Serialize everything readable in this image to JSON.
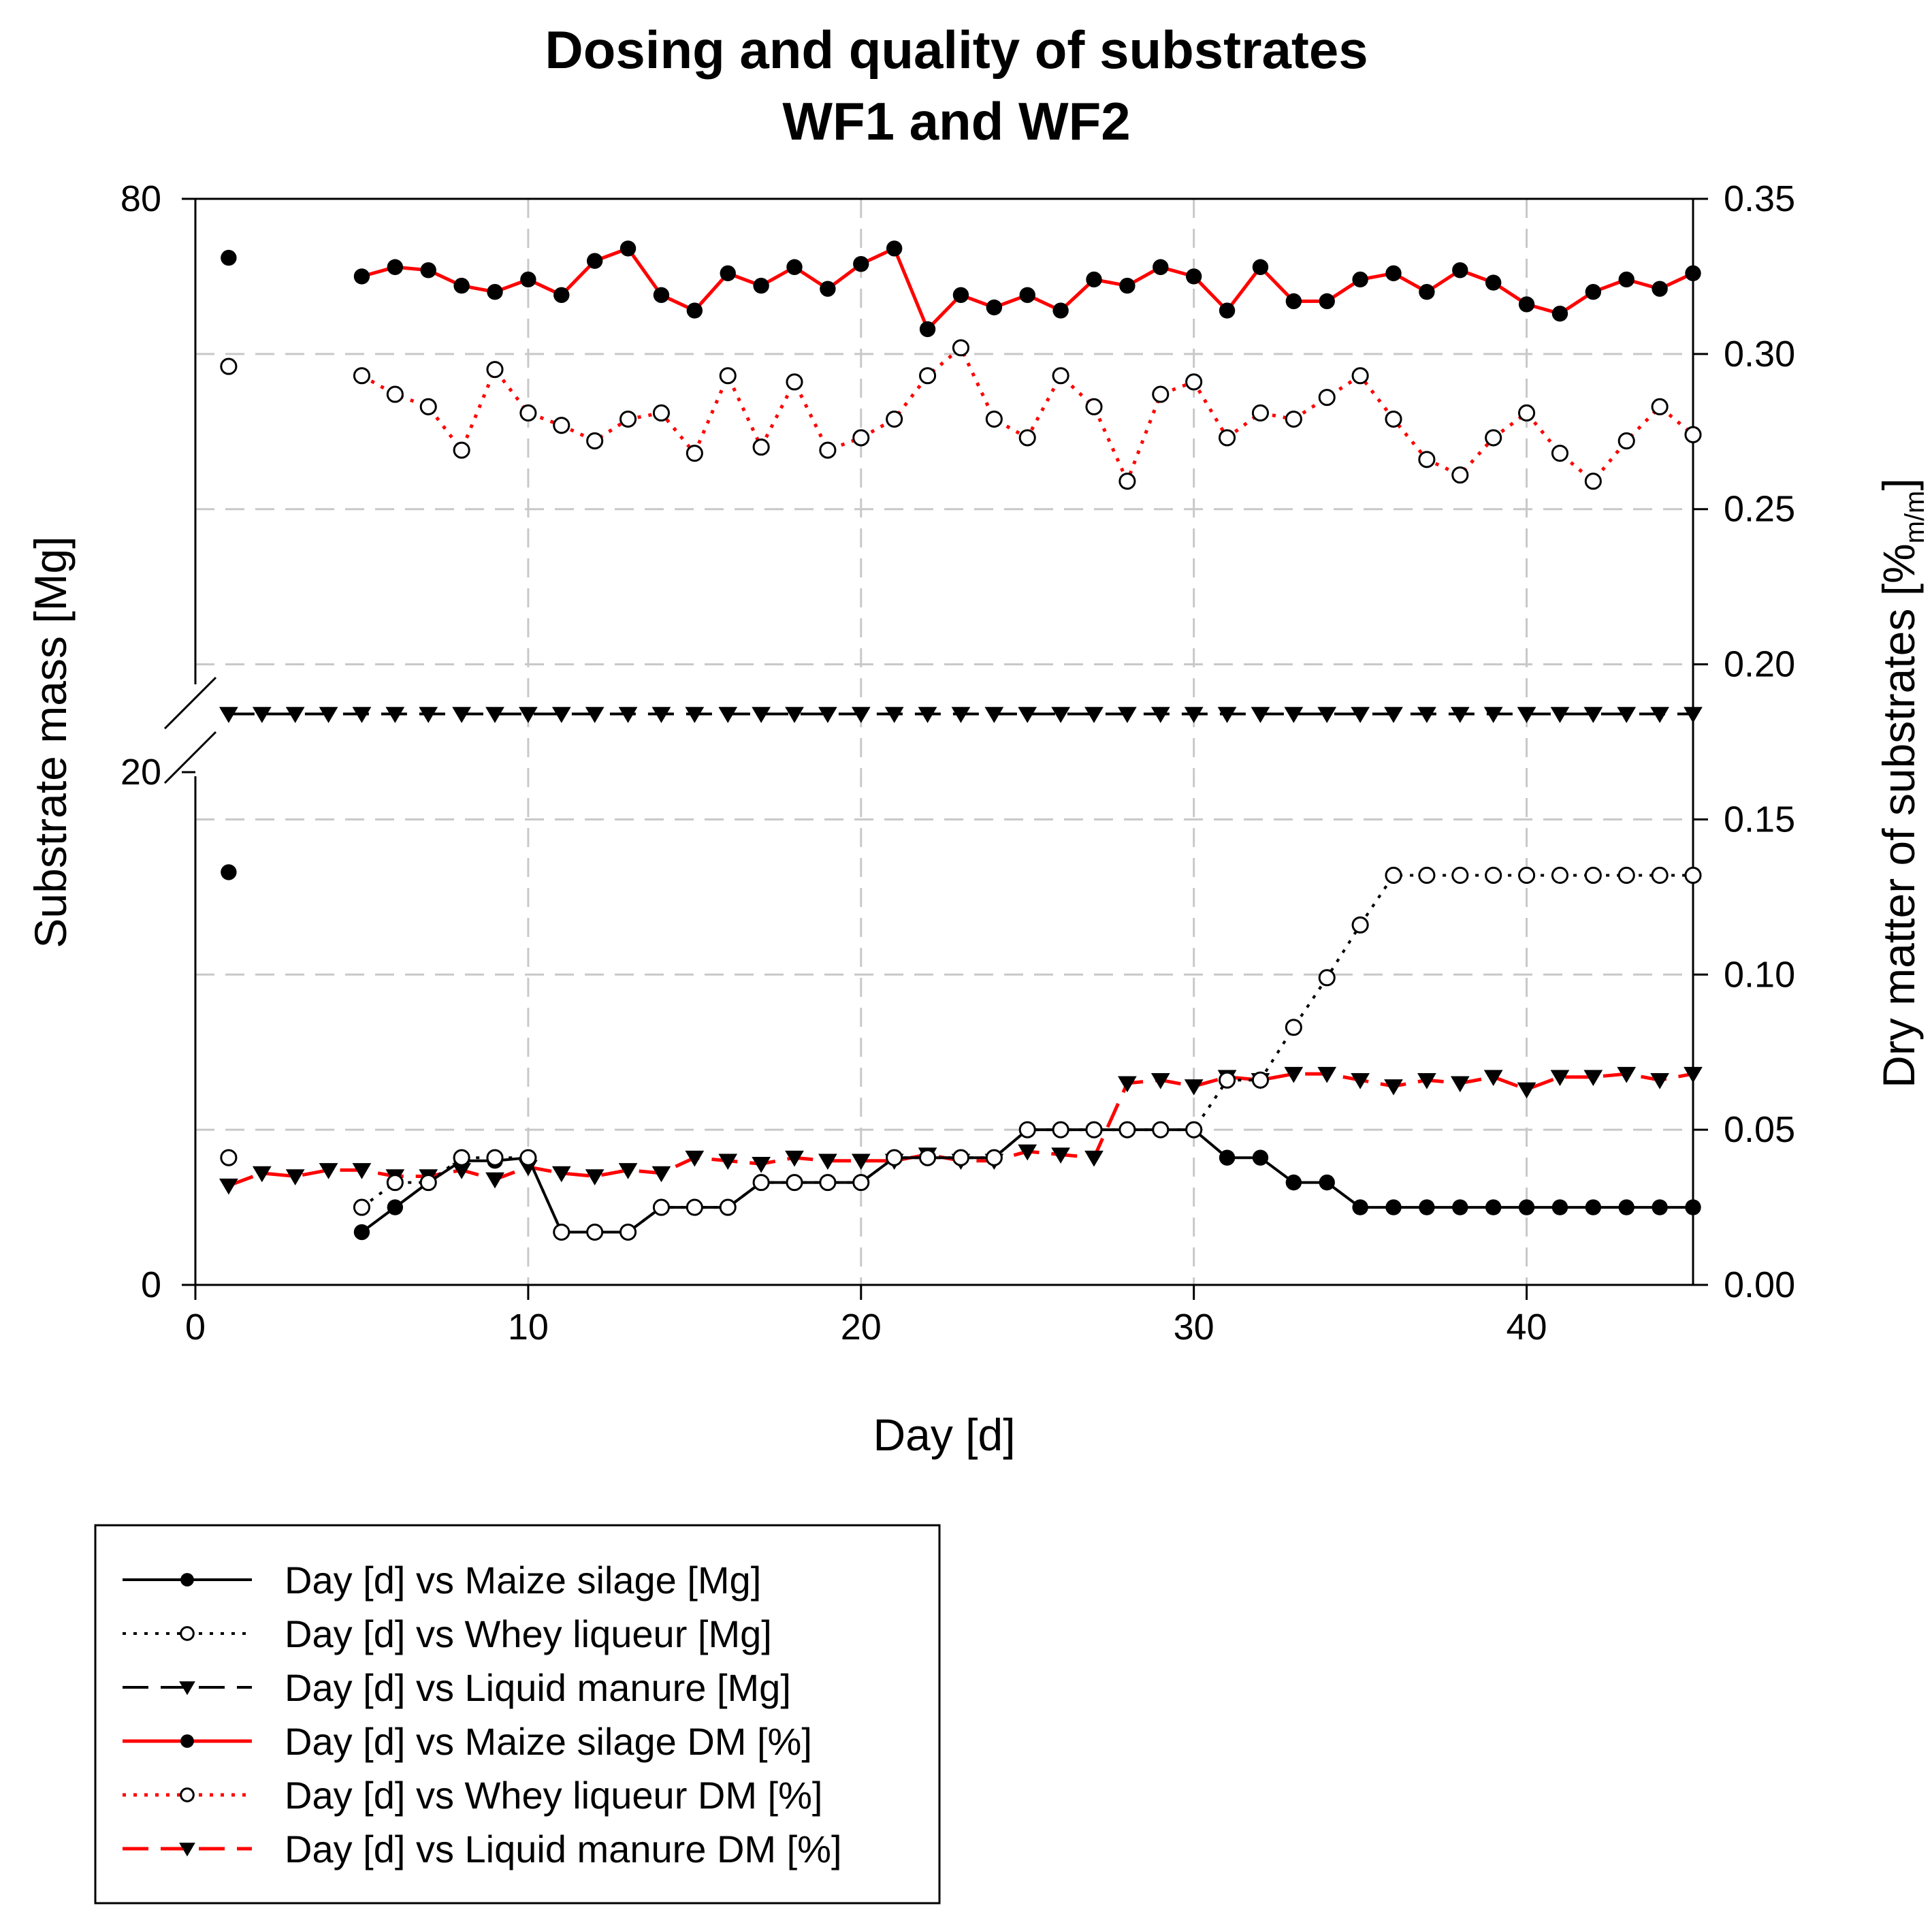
{
  "chart_data": {
    "type": "line",
    "title_line1": "Dosing and quality of substrates",
    "title_line2": "WF1 and WF2",
    "xlabel": "Day [d]",
    "ylabel_left": "Substrate mass [Mg]",
    "ylabel_right_main": "Dry matter of substrates [%",
    "ylabel_right_sub": "m/m",
    "ylabel_right_end": "]",
    "xlim": [
      0,
      45
    ],
    "x_ticks": [
      0,
      10,
      20,
      30,
      40
    ],
    "x_tick_labels": [
      "0",
      "10",
      "20",
      "30",
      "40"
    ],
    "y_left_ticks": [
      0,
      20,
      80
    ],
    "y_left_tick_labels": [
      "0",
      "20",
      "80"
    ],
    "y_left_break": true,
    "ylim_right": [
      0,
      0.35
    ],
    "y_right_ticks": [
      0,
      0.05,
      0.1,
      0.15,
      0.2,
      0.25,
      0.3,
      0.35
    ],
    "y_right_tick_labels": [
      "0.00",
      "0.05",
      "0.10",
      "0.15",
      "0.20",
      "0.25",
      "0.30",
      "0.35"
    ],
    "grid": true,
    "legend_position": "bottom-left below chart",
    "series": [
      {
        "name": "Day [d] vs Maize silage [Mg]",
        "axis": "right",
        "color": "#000000",
        "line": "solid",
        "marker": "filled-circle",
        "points": [
          [
            1,
            0.133
          ],
          [
            5,
            0.017
          ],
          [
            6,
            0.025
          ],
          [
            7,
            0.033
          ],
          [
            8,
            0.04
          ],
          [
            9,
            0.04
          ],
          [
            10,
            0.041
          ],
          [
            11,
            0.017
          ],
          [
            12,
            0.017
          ],
          [
            13,
            0.017
          ],
          [
            14,
            0.025
          ],
          [
            15,
            0.025
          ],
          [
            16,
            0.025
          ],
          [
            17,
            0.033
          ],
          [
            18,
            0.033
          ],
          [
            19,
            0.033
          ],
          [
            20,
            0.033
          ],
          [
            21,
            0.041
          ],
          [
            22,
            0.041
          ],
          [
            23,
            0.041
          ],
          [
            24,
            0.041
          ],
          [
            25,
            0.05
          ],
          [
            26,
            0.05
          ],
          [
            27,
            0.05
          ],
          [
            28,
            0.05
          ],
          [
            29,
            0.05
          ],
          [
            30,
            0.05
          ],
          [
            31,
            0.041
          ],
          [
            32,
            0.041
          ],
          [
            33,
            0.033
          ],
          [
            34,
            0.033
          ],
          [
            35,
            0.025
          ],
          [
            36,
            0.025
          ],
          [
            37,
            0.025
          ],
          [
            38,
            0.025
          ],
          [
            39,
            0.025
          ],
          [
            40,
            0.025
          ],
          [
            41,
            0.025
          ],
          [
            42,
            0.025
          ],
          [
            43,
            0.025
          ],
          [
            44,
            0.025
          ],
          [
            45,
            0.025
          ]
        ]
      },
      {
        "name": "Day [d] vs Whey liqueur [Mg]",
        "axis": "right",
        "color": "#000000",
        "line": "dotted",
        "marker": "open-circle",
        "points": [
          [
            1,
            0.041
          ],
          [
            5,
            0.025
          ],
          [
            6,
            0.033
          ],
          [
            7,
            0.033
          ],
          [
            8,
            0.041
          ],
          [
            9,
            0.041
          ],
          [
            10,
            0.041
          ],
          [
            11,
            0.017
          ],
          [
            12,
            0.017
          ],
          [
            13,
            0.017
          ],
          [
            14,
            0.025
          ],
          [
            15,
            0.025
          ],
          [
            16,
            0.025
          ],
          [
            17,
            0.033
          ],
          [
            18,
            0.033
          ],
          [
            19,
            0.033
          ],
          [
            20,
            0.033
          ],
          [
            21,
            0.041
          ],
          [
            22,
            0.041
          ],
          [
            23,
            0.041
          ],
          [
            24,
            0.041
          ],
          [
            25,
            0.05
          ],
          [
            26,
            0.05
          ],
          [
            27,
            0.05
          ],
          [
            28,
            0.05
          ],
          [
            29,
            0.05
          ],
          [
            30,
            0.05
          ],
          [
            31,
            0.066
          ],
          [
            32,
            0.066
          ],
          [
            33,
            0.083
          ],
          [
            34,
            0.099
          ],
          [
            35,
            0.116
          ],
          [
            36,
            0.132
          ],
          [
            37,
            0.132
          ],
          [
            38,
            0.132
          ],
          [
            39,
            0.132
          ],
          [
            40,
            0.132
          ],
          [
            41,
            0.132
          ],
          [
            42,
            0.132
          ],
          [
            43,
            0.132
          ],
          [
            44,
            0.132
          ],
          [
            45,
            0.132
          ]
        ]
      },
      {
        "name": "Day [d] vs Liquid manure [Mg]",
        "axis": "right",
        "color": "#000000",
        "line": "dashed",
        "marker": "filled-triangle-down",
        "points": [
          [
            1,
            0.184
          ],
          [
            2,
            0.184
          ],
          [
            3,
            0.184
          ],
          [
            4,
            0.184
          ],
          [
            5,
            0.184
          ],
          [
            6,
            0.184
          ],
          [
            7,
            0.184
          ],
          [
            8,
            0.184
          ],
          [
            9,
            0.184
          ],
          [
            10,
            0.184
          ],
          [
            11,
            0.184
          ],
          [
            12,
            0.184
          ],
          [
            13,
            0.184
          ],
          [
            14,
            0.184
          ],
          [
            15,
            0.184
          ],
          [
            16,
            0.184
          ],
          [
            17,
            0.184
          ],
          [
            18,
            0.184
          ],
          [
            19,
            0.184
          ],
          [
            20,
            0.184
          ],
          [
            21,
            0.184
          ],
          [
            22,
            0.184
          ],
          [
            23,
            0.184
          ],
          [
            24,
            0.184
          ],
          [
            25,
            0.184
          ],
          [
            26,
            0.184
          ],
          [
            27,
            0.184
          ],
          [
            28,
            0.184
          ],
          [
            29,
            0.184
          ],
          [
            30,
            0.184
          ],
          [
            31,
            0.184
          ],
          [
            32,
            0.184
          ],
          [
            33,
            0.184
          ],
          [
            34,
            0.184
          ],
          [
            35,
            0.184
          ],
          [
            36,
            0.184
          ],
          [
            37,
            0.184
          ],
          [
            38,
            0.184
          ],
          [
            39,
            0.184
          ],
          [
            40,
            0.184
          ],
          [
            41,
            0.184
          ],
          [
            42,
            0.184
          ],
          [
            43,
            0.184
          ],
          [
            44,
            0.184
          ],
          [
            45,
            0.184
          ]
        ]
      },
      {
        "name": "Day [d] vs Maize silage DM [%]",
        "axis": "right",
        "color": "#ff0000",
        "line": "solid",
        "marker": "filled-circle",
        "points": [
          [
            1,
            0.331
          ],
          [
            5,
            0.325
          ],
          [
            6,
            0.328
          ],
          [
            7,
            0.327
          ],
          [
            8,
            0.322
          ],
          [
            9,
            0.32
          ],
          [
            10,
            0.324
          ],
          [
            11,
            0.319
          ],
          [
            12,
            0.33
          ],
          [
            13,
            0.334
          ],
          [
            14,
            0.319
          ],
          [
            15,
            0.314
          ],
          [
            16,
            0.326
          ],
          [
            17,
            0.322
          ],
          [
            18,
            0.328
          ],
          [
            19,
            0.321
          ],
          [
            20,
            0.329
          ],
          [
            21,
            0.334
          ],
          [
            22,
            0.308
          ],
          [
            23,
            0.319
          ],
          [
            24,
            0.315
          ],
          [
            25,
            0.319
          ],
          [
            26,
            0.314
          ],
          [
            27,
            0.324
          ],
          [
            28,
            0.322
          ],
          [
            29,
            0.328
          ],
          [
            30,
            0.325
          ],
          [
            31,
            0.314
          ],
          [
            32,
            0.328
          ],
          [
            33,
            0.317
          ],
          [
            34,
            0.317
          ],
          [
            35,
            0.324
          ],
          [
            36,
            0.326
          ],
          [
            37,
            0.32
          ],
          [
            38,
            0.327
          ],
          [
            39,
            0.323
          ],
          [
            40,
            0.316
          ],
          [
            41,
            0.313
          ],
          [
            42,
            0.32
          ],
          [
            43,
            0.324
          ],
          [
            44,
            0.321
          ],
          [
            45,
            0.326
          ]
        ]
      },
      {
        "name": "Day [d] vs Whey liqueur DM [%]",
        "axis": "right",
        "color": "#ff0000",
        "line": "dotted",
        "marker": "open-circle",
        "points": [
          [
            1,
            0.296
          ],
          [
            5,
            0.293
          ],
          [
            6,
            0.287
          ],
          [
            7,
            0.283
          ],
          [
            8,
            0.269
          ],
          [
            9,
            0.295
          ],
          [
            10,
            0.281
          ],
          [
            11,
            0.277
          ],
          [
            12,
            0.272
          ],
          [
            13,
            0.279
          ],
          [
            14,
            0.281
          ],
          [
            15,
            0.268
          ],
          [
            16,
            0.293
          ],
          [
            17,
            0.27
          ],
          [
            18,
            0.291
          ],
          [
            19,
            0.269
          ],
          [
            20,
            0.273
          ],
          [
            21,
            0.279
          ],
          [
            22,
            0.293
          ],
          [
            23,
            0.302
          ],
          [
            24,
            0.279
          ],
          [
            25,
            0.273
          ],
          [
            26,
            0.293
          ],
          [
            27,
            0.283
          ],
          [
            28,
            0.259
          ],
          [
            29,
            0.287
          ],
          [
            30,
            0.291
          ],
          [
            31,
            0.273
          ],
          [
            32,
            0.281
          ],
          [
            33,
            0.279
          ],
          [
            34,
            0.286
          ],
          [
            35,
            0.293
          ],
          [
            36,
            0.279
          ],
          [
            37,
            0.266
          ],
          [
            38,
            0.261
          ],
          [
            39,
            0.273
          ],
          [
            40,
            0.281
          ],
          [
            41,
            0.268
          ],
          [
            42,
            0.259
          ],
          [
            43,
            0.272
          ],
          [
            44,
            0.283
          ],
          [
            45,
            0.274
          ]
        ]
      },
      {
        "name": "Day [d] vs Liquid manure DM [%]",
        "axis": "right",
        "color": "#ff0000",
        "line": "dashed",
        "marker": "filled-triangle-down",
        "points": [
          [
            1,
            0.032
          ],
          [
            2,
            0.036
          ],
          [
            3,
            0.035
          ],
          [
            4,
            0.037
          ],
          [
            5,
            0.037
          ],
          [
            6,
            0.035
          ],
          [
            7,
            0.035
          ],
          [
            8,
            0.037
          ],
          [
            9,
            0.034
          ],
          [
            10,
            0.038
          ],
          [
            11,
            0.036
          ],
          [
            12,
            0.035
          ],
          [
            13,
            0.037
          ],
          [
            14,
            0.036
          ],
          [
            15,
            0.041
          ],
          [
            16,
            0.04
          ],
          [
            17,
            0.039
          ],
          [
            18,
            0.041
          ],
          [
            19,
            0.04
          ],
          [
            20,
            0.04
          ],
          [
            21,
            0.04
          ],
          [
            22,
            0.042
          ],
          [
            23,
            0.04
          ],
          [
            24,
            0.04
          ],
          [
            25,
            0.043
          ],
          [
            26,
            0.042
          ],
          [
            27,
            0.041
          ],
          [
            28,
            0.065
          ],
          [
            29,
            0.066
          ],
          [
            30,
            0.064
          ],
          [
            31,
            0.067
          ],
          [
            32,
            0.066
          ],
          [
            33,
            0.068
          ],
          [
            34,
            0.068
          ],
          [
            35,
            0.066
          ],
          [
            36,
            0.064
          ],
          [
            37,
            0.066
          ],
          [
            38,
            0.065
          ],
          [
            39,
            0.067
          ],
          [
            40,
            0.063
          ],
          [
            41,
            0.067
          ],
          [
            42,
            0.067
          ],
          [
            43,
            0.068
          ],
          [
            44,
            0.066
          ],
          [
            45,
            0.068
          ]
        ]
      }
    ]
  }
}
